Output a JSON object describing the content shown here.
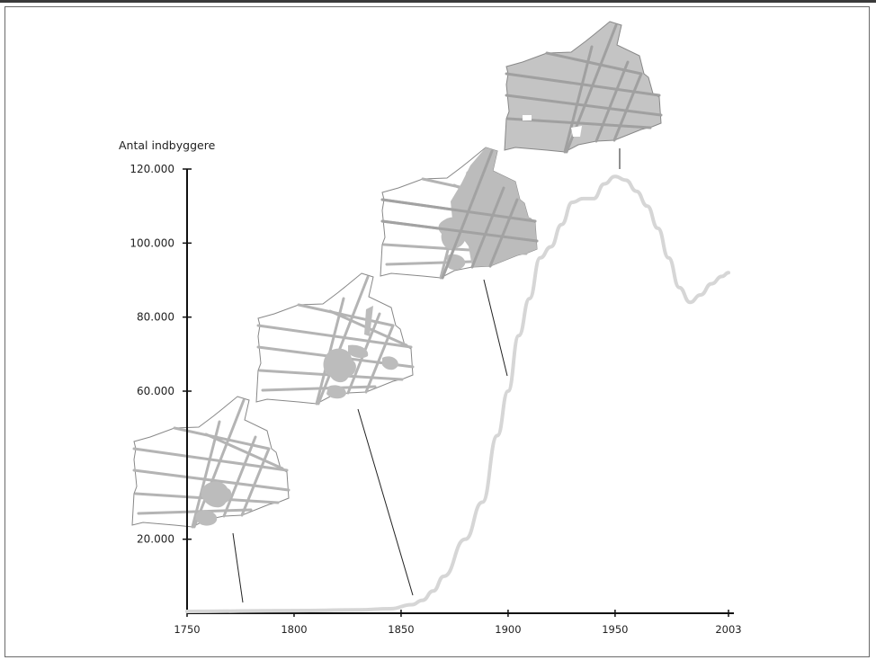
{
  "chart_data": {
    "type": "line",
    "title": "",
    "ylabel": "Antal indbyggere",
    "xlabel": "",
    "xlim": [
      1750,
      2003
    ],
    "ylim": [
      0,
      120000
    ],
    "x_ticks": [
      1750,
      1800,
      1850,
      1900,
      1950,
      2003
    ],
    "x_tick_labels": [
      "1750",
      "1800",
      "1850",
      "1900",
      "1950",
      "2003"
    ],
    "y_ticks": [
      20000,
      60000,
      80000,
      100000,
      120000
    ],
    "y_tick_labels": [
      "20.000",
      "60.000",
      "80.000",
      "100.000",
      "120.000"
    ],
    "grid": false,
    "series_color": "#d6d6d6",
    "series": [
      {
        "x": [
          1750,
          1800,
          1830,
          1845,
          1855,
          1860,
          1865,
          1870,
          1880,
          1888,
          1895,
          1900,
          1905,
          1910,
          1915,
          1920,
          1925,
          1930,
          1935,
          1940,
          1945,
          1950,
          1955,
          1960,
          1965,
          1970,
          1975,
          1980,
          1985,
          1990,
          1995,
          2000,
          2003
        ],
        "y": [
          500,
          700,
          900,
          1200,
          2300,
          3500,
          6000,
          10000,
          20000,
          30000,
          48000,
          60000,
          75000,
          85000,
          96000,
          99000,
          105000,
          111000,
          112000,
          112000,
          116000,
          118000,
          117000,
          114000,
          110000,
          104000,
          96000,
          88000,
          84000,
          86000,
          89000,
          91000,
          92000
        ]
      }
    ],
    "annotations": [
      {
        "name": "map-1770",
        "year": 1780,
        "pointer_year": 1780
      },
      {
        "name": "map-1820",
        "year": 1855,
        "pointer_year": 1855
      },
      {
        "name": "map-1880",
        "year": 1900,
        "pointer_year": 1900
      },
      {
        "name": "map-1950",
        "year": 1950,
        "pointer_year": 1950
      }
    ]
  }
}
